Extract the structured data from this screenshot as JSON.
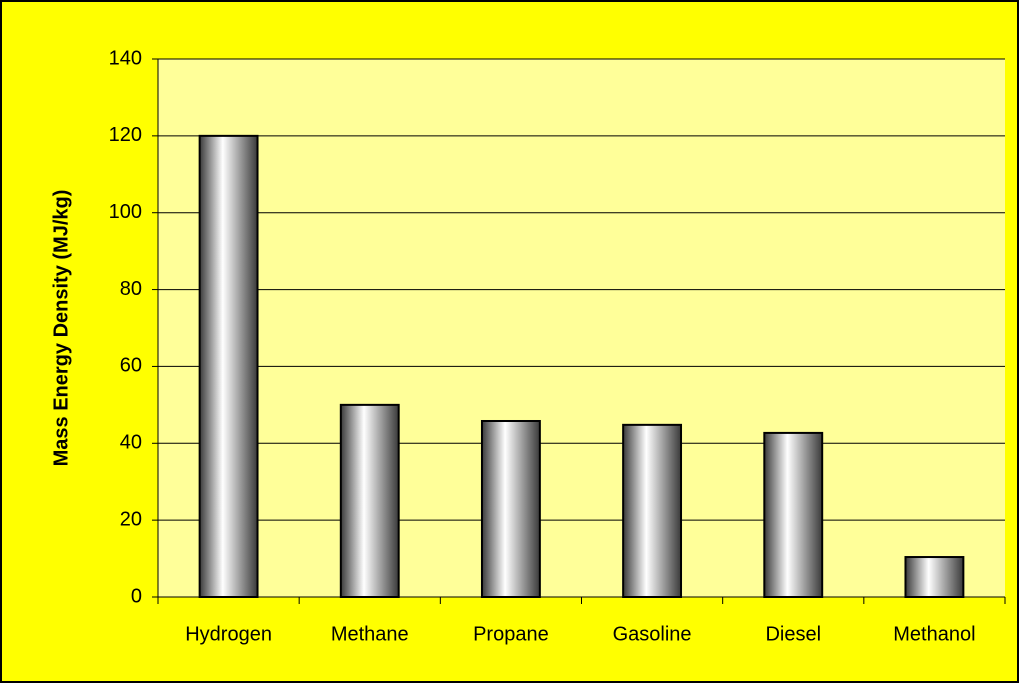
{
  "chart_data": {
    "type": "bar",
    "y_label": "Mass Energy Density (MJ/kg)",
    "categories": [
      "Hydrogen",
      "Methane",
      "Propane",
      "Gasoline",
      "Diesel",
      "Methanol"
    ],
    "values": [
      120,
      50,
      45.8,
      44.8,
      42.7,
      10.4
    ],
    "ylim": [
      0,
      140
    ],
    "yticks": [
      0,
      20,
      40,
      60,
      80,
      100,
      120,
      140
    ],
    "grid": true
  }
}
